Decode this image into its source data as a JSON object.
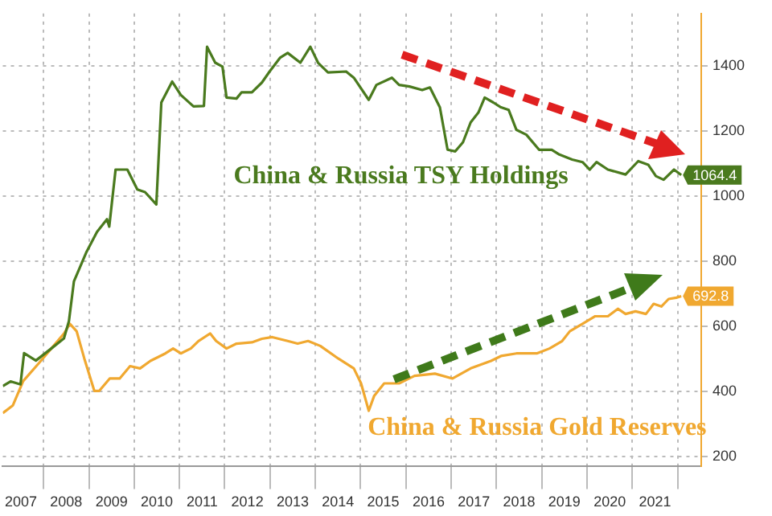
{
  "chart_data": {
    "type": "line",
    "grid": true,
    "legend": false,
    "marker": "none",
    "xlim": [
      2007.1,
      2022.52
    ],
    "xticks": [
      {
        "value": 2007.5,
        "label": "2007"
      },
      {
        "value": 2008,
        "label": null
      },
      {
        "value": 2008.5,
        "label": "2008"
      },
      {
        "value": 2009,
        "label": null
      },
      {
        "value": 2009.5,
        "label": "2009"
      },
      {
        "value": 2010,
        "label": null
      },
      {
        "value": 2010.5,
        "label": "2010"
      },
      {
        "value": 2011,
        "label": null
      },
      {
        "value": 2011.5,
        "label": "2011"
      },
      {
        "value": 2012,
        "label": null
      },
      {
        "value": 2012.5,
        "label": "2012"
      },
      {
        "value": 2013,
        "label": null
      },
      {
        "value": 2013.5,
        "label": "2013"
      },
      {
        "value": 2014,
        "label": null
      },
      {
        "value": 2014.5,
        "label": "2014"
      },
      {
        "value": 2015,
        "label": null
      },
      {
        "value": 2015.5,
        "label": "2015"
      },
      {
        "value": 2016,
        "label": null
      },
      {
        "value": 2016.5,
        "label": "2016"
      },
      {
        "value": 2017,
        "label": null
      },
      {
        "value": 2017.5,
        "label": "2017"
      },
      {
        "value": 2018,
        "label": null
      },
      {
        "value": 2018.5,
        "label": "2018"
      },
      {
        "value": 2019,
        "label": null
      },
      {
        "value": 2019.5,
        "label": "2019"
      },
      {
        "value": 2020,
        "label": null
      },
      {
        "value": 2020.5,
        "label": "2020"
      },
      {
        "value": 2021,
        "label": null
      },
      {
        "value": 2021.5,
        "label": "2021"
      },
      {
        "value": 2022,
        "label": null
      }
    ],
    "ylim": [
      170,
      1560
    ],
    "yticks": [
      200,
      400,
      600,
      800,
      1000,
      1200,
      1400
    ],
    "series": [
      {
        "name": "China & Russia TSY Holdings",
        "color": "#4a7a1e",
        "x": [
          2007.1,
          2007.27,
          2007.49,
          2007.57,
          2007.83,
          2008.17,
          2008.45,
          2008.56,
          2008.67,
          2008.95,
          2009.18,
          2009.4,
          2009.45,
          2009.59,
          2009.85,
          2010.07,
          2010.24,
          2010.49,
          2010.6,
          2010.84,
          2011.03,
          2011.31,
          2011.54,
          2011.61,
          2011.79,
          2011.95,
          2012.04,
          2012.26,
          2012.37,
          2012.6,
          2012.82,
          2012.99,
          2013.22,
          2013.39,
          2013.67,
          2013.89,
          2014.06,
          2014.28,
          2014.68,
          2014.85,
          2015.18,
          2015.35,
          2015.69,
          2015.85,
          2016.08,
          2016.36,
          2016.53,
          2016.75,
          2016.92,
          2017.09,
          2017.26,
          2017.43,
          2017.6,
          2017.74,
          2017.93,
          2018.1,
          2018.27,
          2018.44,
          2018.66,
          2018.94,
          2019.22,
          2019.39,
          2019.67,
          2019.9,
          2020.06,
          2020.21,
          2020.46,
          2020.85,
          2021.13,
          2021.35,
          2021.52,
          2021.69,
          2021.92,
          2022.08
        ],
        "values": [
          417,
          431,
          422,
          518,
          495,
          532,
          563,
          616,
          738,
          829,
          890,
          929,
          906,
          1081,
          1081,
          1020,
          1012,
          974,
          1287,
          1351,
          1310,
          1275,
          1276,
          1458,
          1409,
          1397,
          1302,
          1299,
          1318,
          1318,
          1348,
          1382,
          1424,
          1439,
          1409,
          1458,
          1409,
          1379,
          1382,
          1363,
          1295,
          1341,
          1363,
          1341,
          1336,
          1325,
          1333,
          1272,
          1142,
          1137,
          1165,
          1226,
          1256,
          1302,
          1287,
          1272,
          1264,
          1203,
          1188,
          1142,
          1142,
          1127,
          1112,
          1104,
          1081,
          1104,
          1081,
          1066,
          1107,
          1096,
          1061,
          1050,
          1081,
          1064.4
        ],
        "value_labels": [
          null,
          null,
          null,
          null,
          null,
          null,
          null,
          null,
          null,
          null,
          null,
          null,
          null,
          null,
          null,
          null,
          null,
          null,
          null,
          null,
          null,
          null,
          null,
          null,
          null,
          null,
          null,
          null,
          null,
          null,
          null,
          null,
          null,
          null,
          null,
          null,
          null,
          null,
          null,
          null,
          null,
          null,
          null,
          null,
          null,
          null,
          null,
          null,
          null,
          null,
          null,
          null,
          null,
          null,
          null,
          null,
          null,
          null,
          null,
          null,
          null,
          null,
          null,
          null,
          null,
          null,
          null,
          null,
          null,
          null,
          null,
          null,
          null,
          "1064.4"
        ]
      },
      {
        "name": "China & Russia Gold Reserves",
        "color": "#f0a830",
        "x": [
          2007.1,
          2007.32,
          2007.55,
          2007.89,
          2008.22,
          2008.45,
          2008.58,
          2008.73,
          2008.9,
          2009.12,
          2009.23,
          2009.46,
          2009.68,
          2009.91,
          2010.13,
          2010.36,
          2010.69,
          2010.86,
          2011.03,
          2011.25,
          2011.42,
          2011.68,
          2011.81,
          2012.04,
          2012.26,
          2012.6,
          2012.82,
          2013.05,
          2013.39,
          2013.61,
          2013.84,
          2014.11,
          2014.51,
          2014.85,
          2015.01,
          2015.18,
          2015.3,
          2015.52,
          2015.85,
          2016.19,
          2016.64,
          2017.03,
          2017.43,
          2017.88,
          2018.1,
          2018.44,
          2018.89,
          2019.17,
          2019.45,
          2019.62,
          2019.9,
          2020.18,
          2020.46,
          2020.68,
          2020.85,
          2021.07,
          2021.3,
          2021.47,
          2021.64,
          2021.8,
          2021.97,
          2022.08
        ],
        "values": [
          334,
          357,
          432,
          486,
          540,
          578,
          608,
          585,
          501,
          402,
          402,
          440,
          440,
          478,
          471,
          494,
          517,
          532,
          517,
          532,
          555,
          578,
          555,
          532,
          547,
          551,
          562,
          567,
          555,
          547,
          555,
          540,
          501,
          471,
          425,
          341,
          387,
          425,
          425,
          448,
          455,
          440,
          471,
          494,
          509,
          517,
          517,
          532,
          555,
          585,
          608,
          631,
          631,
          654,
          638,
          646,
          638,
          669,
          661,
          684,
          688,
          692.8
        ],
        "value_labels": [
          null,
          null,
          null,
          null,
          null,
          null,
          null,
          null,
          null,
          null,
          null,
          null,
          null,
          null,
          null,
          null,
          null,
          null,
          null,
          null,
          null,
          null,
          null,
          null,
          null,
          null,
          null,
          null,
          null,
          null,
          null,
          null,
          null,
          null,
          null,
          null,
          null,
          null,
          null,
          null,
          null,
          null,
          null,
          null,
          null,
          null,
          null,
          null,
          null,
          null,
          null,
          null,
          null,
          null,
          null,
          null,
          null,
          null,
          null,
          null,
          null,
          "692.8"
        ]
      }
    ]
  }
}
